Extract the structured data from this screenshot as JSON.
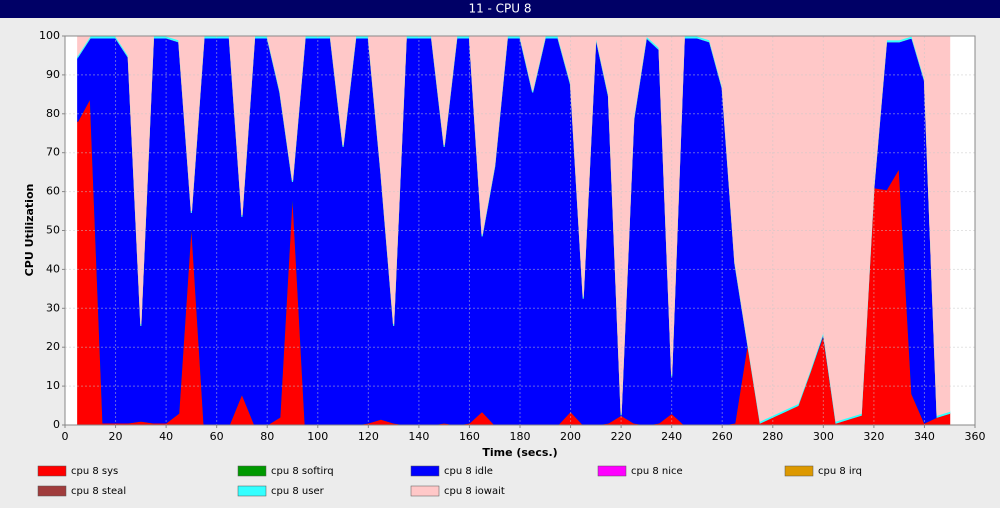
{
  "chart_data": {
    "type": "stacked-area",
    "title": "11 - CPU 8",
    "xlabel": "Time (secs.)",
    "ylabel": "CPU Utilization",
    "x": [
      5,
      10,
      15,
      20,
      25,
      30,
      35,
      40,
      45,
      50,
      55,
      60,
      65,
      70,
      75,
      80,
      85,
      90,
      95,
      100,
      105,
      110,
      115,
      120,
      125,
      130,
      135,
      140,
      145,
      150,
      155,
      160,
      165,
      170,
      175,
      180,
      185,
      190,
      195,
      200,
      205,
      210,
      215,
      220,
      225,
      230,
      235,
      240,
      245,
      250,
      255,
      260,
      265,
      270,
      275,
      280,
      285,
      290,
      295,
      300,
      305,
      310,
      315,
      320,
      325,
      330,
      335,
      340,
      345,
      350
    ],
    "xlim": [
      0,
      360
    ],
    "xticks": [
      0,
      20,
      40,
      60,
      80,
      100,
      120,
      140,
      160,
      180,
      200,
      220,
      240,
      260,
      280,
      300,
      320,
      340,
      360
    ],
    "ylim": [
      0,
      100
    ],
    "yticks": [
      0,
      10,
      20,
      30,
      40,
      50,
      60,
      70,
      80,
      90,
      100
    ],
    "grid": true,
    "series": [
      {
        "name": "cpu 8 sys",
        "color": "#ff0000",
        "values": [
          78,
          84,
          0.5,
          0.5,
          0.5,
          1,
          0.5,
          0.5,
          3,
          52,
          0,
          0,
          0,
          8,
          0,
          0,
          2,
          60,
          0,
          0,
          0,
          0,
          0,
          0.5,
          1.5,
          0.5,
          0,
          0,
          0,
          0.5,
          0,
          0.5,
          3.5,
          0,
          0,
          0,
          0,
          0,
          0,
          3.5,
          0,
          0,
          0.5,
          2.5,
          0.5,
          0,
          0.5,
          3,
          0,
          0,
          0,
          0,
          0.5,
          21,
          0.5,
          2,
          3.5,
          5,
          14,
          23,
          0.5,
          1.5,
          2.5,
          61,
          60.5,
          66,
          8,
          0.5,
          2,
          3
        ]
      },
      {
        "name": "cpu 8 softirq",
        "color": "#009900",
        "values": [
          0,
          0,
          0,
          0,
          0,
          0,
          0,
          0,
          0,
          0,
          0,
          0,
          0,
          0,
          0,
          0,
          0,
          0,
          0,
          0,
          0,
          0,
          0,
          0,
          0,
          0,
          0,
          0,
          0,
          0,
          0,
          0,
          0,
          0,
          0,
          0,
          0,
          0,
          0,
          0,
          0,
          0,
          0,
          0,
          0,
          0,
          0,
          0,
          0,
          0,
          0,
          0,
          0,
          0,
          0,
          0,
          0,
          0,
          0,
          0,
          0,
          0,
          0,
          0,
          0,
          0,
          0,
          0,
          0,
          0
        ]
      },
      {
        "name": "cpu 8 idle",
        "color": "#0000ff",
        "values": [
          16.5,
          15.5,
          99,
          99,
          94,
          24.5,
          99,
          99,
          95.5,
          2.5,
          99.5,
          99.5,
          99.5,
          45.5,
          99.5,
          99.5,
          83.5,
          2.5,
          99.5,
          99.5,
          99.5,
          71.5,
          99.5,
          99,
          63,
          25,
          99.5,
          99.5,
          99.5,
          71,
          99.5,
          99,
          45,
          66.5,
          99.5,
          99.5,
          85.5,
          99.5,
          99.5,
          84,
          32.5,
          99.5,
          84,
          0,
          78,
          99.5,
          96,
          9.5,
          99.5,
          99.5,
          98.5,
          86.5,
          41,
          0,
          0,
          0,
          0,
          0,
          0,
          0.5,
          0,
          0,
          0,
          0,
          38,
          32.5,
          91.5,
          88,
          0,
          0
        ]
      },
      {
        "name": "cpu 8 nice",
        "color": "#ff00ff",
        "values": [
          0,
          0,
          0,
          0,
          0,
          0,
          0,
          0,
          0,
          0,
          0,
          0,
          0,
          0,
          0,
          0,
          0,
          0,
          0,
          0,
          0,
          0,
          0,
          0,
          0,
          0,
          0,
          0,
          0,
          0,
          0,
          0,
          0,
          0,
          0,
          0,
          0,
          0,
          0,
          0,
          0,
          0,
          0,
          0,
          0,
          0,
          0,
          0,
          0,
          0,
          0,
          0,
          0,
          0,
          0,
          0,
          0,
          0,
          0,
          0,
          0,
          0,
          0,
          0,
          0,
          0,
          0,
          0,
          0,
          0
        ]
      },
      {
        "name": "cpu 8 irq",
        "color": "#dd9900",
        "values": [
          0,
          0,
          0,
          0,
          0,
          0,
          0,
          0,
          0,
          0,
          0,
          0,
          0,
          0,
          0,
          0,
          0,
          0,
          0,
          0,
          0,
          0,
          0,
          0,
          0,
          0,
          0,
          0,
          0,
          0,
          0,
          0,
          0,
          0,
          0,
          0,
          0,
          0,
          0,
          0,
          0,
          0,
          0,
          0,
          0,
          0,
          0,
          0,
          0,
          0,
          0,
          0,
          0,
          0,
          0,
          0,
          0,
          0,
          0,
          0,
          0,
          0,
          0,
          0,
          0,
          0,
          0,
          0,
          0,
          0
        ]
      },
      {
        "name": "cpu 8 steal",
        "color": "#a03c3c",
        "values": [
          0,
          0,
          0,
          0,
          0,
          0,
          0,
          0,
          0,
          0,
          0,
          0,
          0,
          0,
          0,
          0,
          0,
          0,
          0,
          0,
          0,
          0,
          0,
          0,
          0,
          0,
          0,
          0,
          0,
          0,
          0,
          0,
          0,
          0,
          0,
          0,
          0,
          0,
          0,
          0,
          0,
          0,
          0,
          0,
          0,
          0,
          0,
          0,
          0,
          0,
          0,
          0,
          0,
          0,
          0,
          0,
          0,
          0,
          0,
          0,
          0,
          0,
          0,
          0,
          0,
          0,
          0,
          0,
          0,
          0
        ]
      },
      {
        "name": "cpu 8 user",
        "color": "#33ffff",
        "values": [
          0.5,
          0.5,
          0.5,
          0.5,
          0.5,
          0.5,
          0.5,
          0.5,
          0.5,
          0.5,
          0.5,
          0.5,
          0.5,
          0.5,
          0.5,
          0.5,
          0.5,
          0.5,
          0.5,
          0.5,
          0.5,
          0.5,
          0.5,
          0.5,
          0.5,
          0.5,
          0.5,
          0.5,
          0.5,
          0.5,
          0.5,
          0.5,
          0.5,
          0.5,
          0.5,
          0.5,
          0.5,
          0.5,
          0.5,
          0.5,
          0.5,
          0.5,
          0.5,
          0.5,
          0.5,
          0.5,
          0.5,
          0.5,
          0.5,
          0.5,
          0.5,
          0.5,
          0.5,
          0.5,
          0.5,
          0.5,
          0.5,
          0.5,
          0.5,
          0.5,
          0.5,
          0.5,
          0.5,
          0.5,
          0.5,
          0.5,
          0.5,
          0.5,
          0.5,
          0.5
        ]
      },
      {
        "name": "cpu 8 iowait",
        "color": "#ffc8c8",
        "values": [
          5,
          0,
          0,
          0,
          5,
          74,
          0,
          0,
          1,
          45,
          0,
          0,
          0,
          46,
          0,
          0,
          14,
          37,
          0,
          0,
          0,
          28,
          0,
          0,
          35,
          74,
          0,
          0,
          0,
          28,
          0,
          0,
          51,
          33,
          0,
          0,
          14,
          0,
          0,
          12,
          67,
          0,
          15,
          97,
          21,
          0,
          3,
          87,
          0,
          0,
          1,
          13,
          58,
          78.5,
          99,
          97.5,
          96,
          94.5,
          85.5,
          76,
          99,
          98,
          97,
          38.5,
          1,
          1,
          0,
          11,
          97.5,
          96.5
        ]
      }
    ]
  }
}
